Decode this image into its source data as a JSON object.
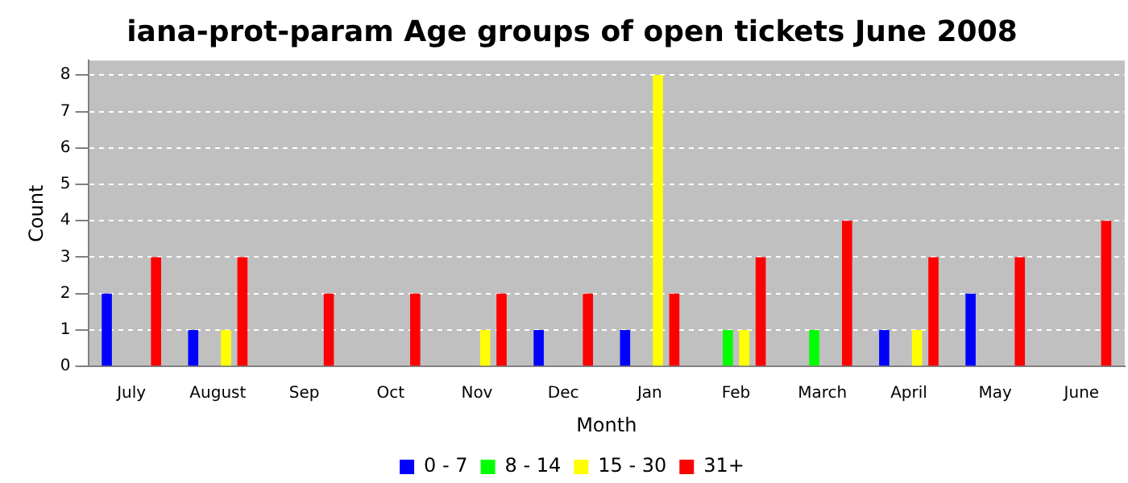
{
  "chart_data": {
    "type": "bar",
    "title": "iana-prot-param Age groups of open tickets June 2008",
    "xlabel": "Month",
    "ylabel": "Count",
    "categories": [
      "July",
      "August",
      "Sep",
      "Oct",
      "Nov",
      "Dec",
      "Jan",
      "Feb",
      "March",
      "April",
      "May",
      "June"
    ],
    "series": [
      {
        "name": "0 - 7",
        "color": "#0000ff",
        "values": [
          2,
          1,
          0,
          0,
          0,
          1,
          1,
          0,
          0,
          1,
          2,
          0
        ]
      },
      {
        "name": "8 - 14",
        "color": "#00ff00",
        "values": [
          0,
          0,
          0,
          0,
          0,
          0,
          0,
          1,
          1,
          0,
          0,
          0
        ]
      },
      {
        "name": "15 - 30",
        "color": "#ffff00",
        "values": [
          0,
          1,
          0,
          0,
          1,
          0,
          8,
          1,
          0,
          1,
          0,
          0
        ]
      },
      {
        "name": "31+",
        "color": "#ff0000",
        "values": [
          3,
          3,
          2,
          2,
          2,
          2,
          2,
          3,
          4,
          3,
          3,
          4
        ]
      }
    ],
    "ylim": [
      0,
      8.4
    ],
    "yticks": [
      0,
      1,
      2,
      3,
      4,
      5,
      6,
      7,
      8
    ],
    "grid": "y",
    "legend": "bottom"
  }
}
